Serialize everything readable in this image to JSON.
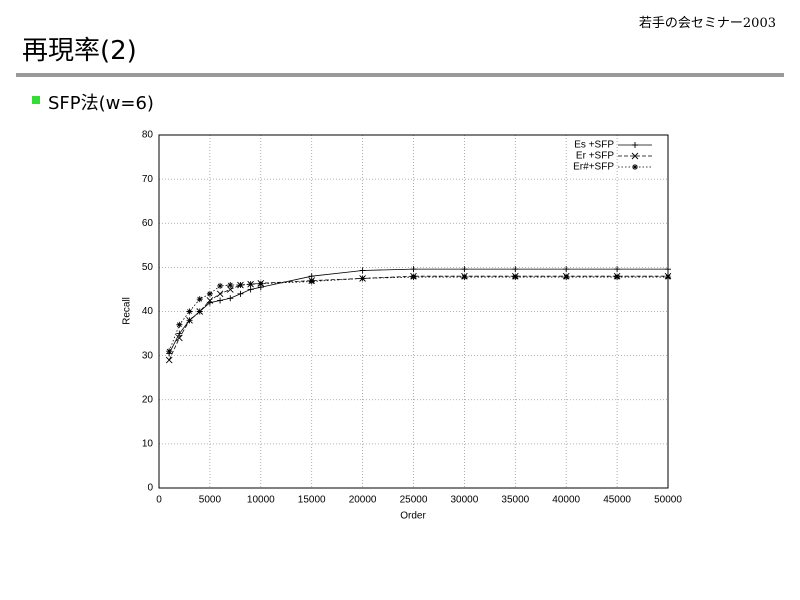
{
  "header": {
    "title": "再現率(2)",
    "event": "若手の会セミナー2003",
    "bullet": "SFP法(w=6)"
  },
  "chart_data": {
    "type": "line",
    "x_label": "Order",
    "y_label": "Recall",
    "xlim": [
      0,
      50000
    ],
    "ylim": [
      0,
      80
    ],
    "xticks": [
      0,
      5000,
      10000,
      15000,
      20000,
      25000,
      30000,
      35000,
      40000,
      45000,
      50000
    ],
    "yticks": [
      0,
      10,
      20,
      30,
      40,
      50,
      60,
      70,
      80
    ],
    "grid": true,
    "legend": "upper right",
    "x": [
      1000,
      2000,
      3000,
      4000,
      5000,
      6000,
      7000,
      8000,
      9000,
      10000,
      15000,
      20000,
      25000,
      30000,
      35000,
      40000,
      45000,
      50000
    ],
    "series": [
      {
        "name": "Es +SFP",
        "color": "#000000",
        "dash": "solid",
        "marker": "plus",
        "values": [
          30.5,
          35,
          38,
          40,
          42,
          42.5,
          43,
          44,
          45,
          45.5,
          48,
          49.3,
          49.6,
          49.6,
          49.6,
          49.6,
          49.6,
          49.6
        ]
      },
      {
        "name": "Er +SFP",
        "color": "#000000",
        "dash": "dashed",
        "marker": "x",
        "values": [
          29,
          34,
          38,
          40,
          42.5,
          44,
          45,
          46,
          46.2,
          46.4,
          47,
          47.5,
          48,
          48,
          48,
          48,
          48,
          48
        ]
      },
      {
        "name": "Er#+SFP",
        "color": "#000000",
        "dash": "dotted",
        "marker": "star",
        "values": [
          31,
          37,
          40,
          42.8,
          44,
          45.8,
          46,
          46,
          46.2,
          46.3,
          46.8,
          47.5,
          47.8,
          47.8,
          47.8,
          47.8,
          47.8,
          47.8
        ]
      }
    ]
  }
}
